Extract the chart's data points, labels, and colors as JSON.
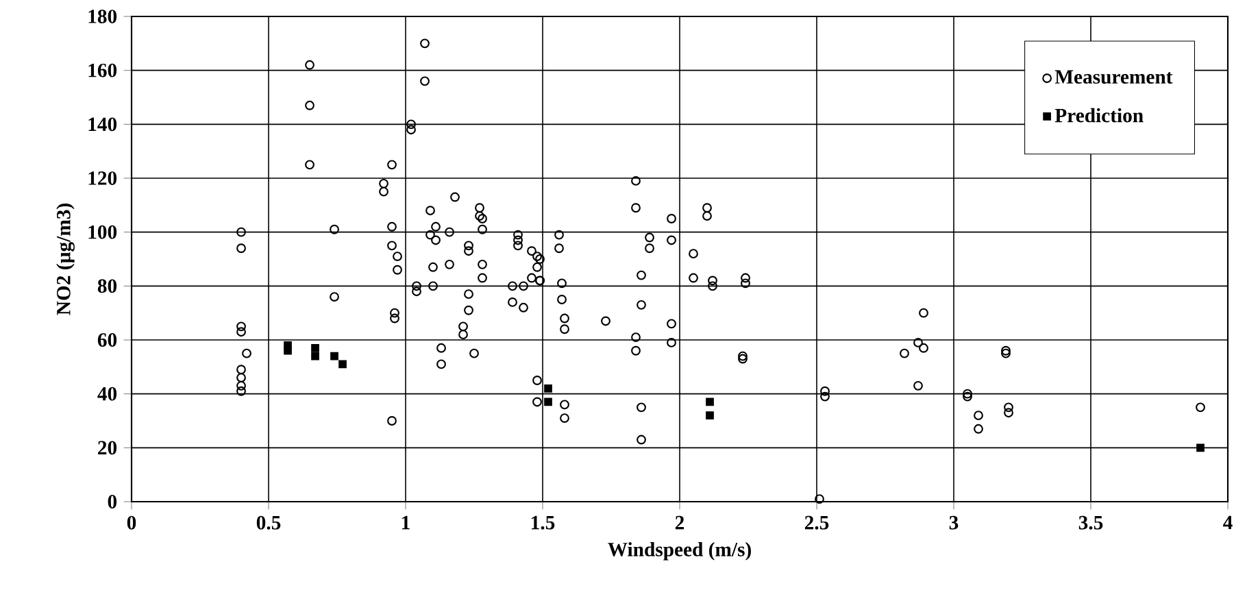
{
  "chart_data": {
    "type": "scatter",
    "xlabel": "Windspeed (m/s)",
    "ylabel": "NO2 (µg/m3)",
    "xlim": [
      0,
      4
    ],
    "xticks": [
      0,
      0.5,
      1,
      1.5,
      2,
      2.5,
      3,
      3.5,
      4
    ],
    "ylim": [
      0,
      180
    ],
    "yticks": [
      0,
      20,
      40,
      60,
      80,
      100,
      120,
      140,
      160,
      180
    ],
    "grid": true,
    "legend": "top right",
    "series": [
      {
        "name": "Measurement",
        "color": "#000000",
        "marker": "circle",
        "x": [
          0.4,
          0.4,
          0.4,
          0.4,
          0.42,
          0.4,
          0.4,
          0.4,
          0.4,
          0.65,
          0.65,
          0.65,
          0.74,
          0.74,
          0.95,
          0.92,
          0.92,
          0.95,
          0.95,
          0.97,
          0.97,
          0.96,
          0.96,
          0.95,
          1.02,
          1.02,
          1.07,
          1.07,
          1.18,
          1.09,
          1.27,
          1.27,
          1.28,
          1.11,
          1.09,
          1.11,
          1.16,
          1.28,
          1.23,
          1.23,
          1.41,
          1.41,
          1.41,
          1.46,
          1.48,
          1.49,
          1.56,
          1.56,
          1.1,
          1.16,
          1.28,
          1.28,
          1.48,
          1.46,
          1.49,
          1.49,
          1.04,
          1.04,
          1.1,
          1.39,
          1.43,
          1.57,
          1.23,
          1.57,
          1.39,
          1.43,
          1.23,
          1.58,
          1.58,
          1.73,
          1.21,
          1.21,
          1.13,
          1.13,
          1.25,
          1.48,
          1.48,
          1.58,
          1.58,
          1.84,
          1.84,
          1.97,
          1.89,
          1.89,
          1.97,
          1.86,
          1.86,
          1.84,
          1.84,
          1.97,
          1.97,
          1.86,
          1.86,
          2.1,
          2.1,
          2.05,
          2.05,
          2.12,
          2.12,
          2.24,
          2.24,
          2.23,
          2.23,
          2.53,
          2.53,
          2.51,
          2.89,
          2.87,
          2.89,
          2.82,
          2.87,
          3.19,
          3.19,
          3.05,
          3.05,
          3.09,
          3.09,
          3.2,
          3.2,
          3.9
        ],
        "values": [
          100,
          94,
          65,
          63,
          55,
          49,
          46,
          43,
          41,
          162,
          147,
          125,
          101,
          76,
          125,
          118,
          115,
          102,
          95,
          91,
          86,
          70,
          68,
          30,
          140,
          138,
          170,
          156,
          113,
          108,
          109,
          106,
          105,
          102,
          99,
          97,
          100,
          101,
          95,
          93,
          99,
          97,
          95,
          93,
          91,
          90,
          99,
          94,
          87,
          88,
          88,
          83,
          87,
          83,
          82,
          82,
          80,
          78,
          80,
          80,
          80,
          81,
          77,
          75,
          74,
          72,
          71,
          68,
          64,
          67,
          65,
          62,
          57,
          51,
          55,
          45,
          37,
          36,
          31,
          119,
          109,
          105,
          98,
          94,
          97,
          84,
          73,
          61,
          56,
          66,
          59,
          35,
          23,
          109,
          106,
          92,
          83,
          82,
          80,
          83,
          81,
          54,
          53,
          41,
          39,
          1,
          70,
          59,
          57,
          55,
          43,
          56,
          55,
          40,
          39,
          32,
          27,
          35,
          33,
          35
        ]
      },
      {
        "name": "Prediction",
        "color": "#000000",
        "marker": "square",
        "x": [
          0.57,
          0.57,
          0.67,
          0.67,
          0.74,
          0.77,
          1.52,
          1.52,
          2.11,
          2.11,
          3.9
        ],
        "values": [
          58,
          56,
          57,
          54,
          54,
          51,
          42,
          37,
          37,
          32,
          20
        ]
      }
    ]
  }
}
